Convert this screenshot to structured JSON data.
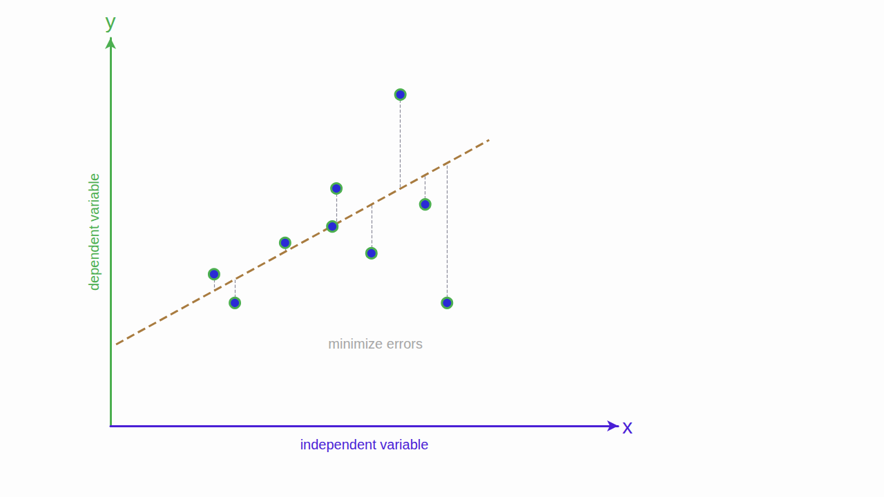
{
  "chart_data": {
    "type": "scatter",
    "axis_symbols": {
      "x": "x",
      "y": "y"
    },
    "x_label": "independent variable",
    "y_label": "dependent variable",
    "annotations": [
      {
        "text": "minimize errors",
        "x": 52.2,
        "y": 21.2
      }
    ],
    "xlim": [
      0,
      100
    ],
    "ylim": [
      0,
      100
    ],
    "tick_labels": false,
    "grid": false,
    "series": [
      {
        "type": "scatter",
        "color": "#2a2ad6",
        "marker": "circle",
        "x": [
          20.4,
          24.5,
          34.4,
          43.7,
          44.5,
          51.4,
          57.1,
          62.0,
          66.3
        ],
        "values": [
          39.1,
          31.7,
          47.2,
          51.4,
          61.2,
          44.5,
          85.4,
          57.1,
          31.7
        ]
      },
      {
        "type": "line",
        "color": "#a87b3f",
        "line_style": "dashed",
        "x": [
          1.1,
          74.6
        ],
        "values": [
          21.0,
          73.7
        ]
      }
    ]
  }
}
